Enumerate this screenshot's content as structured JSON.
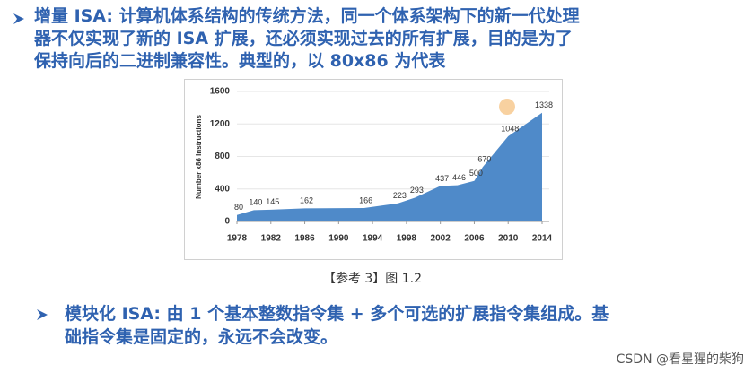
{
  "bullets": [
    {
      "lines": [
        "增量 ISA: 计算机体系结构的传统方法，同一个体系架构下的新一代处理",
        "器不仅实现了新的 ISA 扩展，还必须实现过去的所有扩展，目的是为了",
        "保持向后的二进制兼容性。典型的，以 80x86 为代表"
      ]
    },
    {
      "lines": [
        "模块化 ISA: 由 1 个基本整数指令集 + 多个可选的扩展指令集组成。基",
        "础指令集是固定的，永远不会改变。"
      ]
    }
  ],
  "chart_data": {
    "type": "area",
    "y_label": "Number x86 Instructions",
    "x": [
      1978,
      1980,
      1982,
      1986,
      1993,
      1997,
      1999,
      2002,
      2004,
      2006,
      2007,
      2010,
      2014
    ],
    "values": [
      80,
      140,
      145,
      162,
      166,
      223,
      293,
      437,
      446,
      500,
      670,
      1048,
      1338
    ],
    "color": "#4f8ac9",
    "xlim": [
      1978,
      2014
    ],
    "xticks": [
      1978,
      1982,
      1986,
      1990,
      1994,
      1998,
      2002,
      2006,
      2010,
      2014
    ],
    "ylim": [
      0,
      1600
    ],
    "yticks": [
      0,
      400,
      800,
      1200,
      1600
    ],
    "grid": true
  },
  "caption": "【参考 3】图 1.2",
  "watermark": "CSDN @看星猩的柴狗"
}
